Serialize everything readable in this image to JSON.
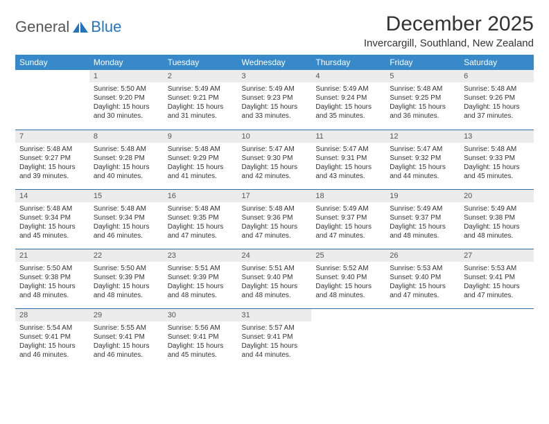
{
  "logo": {
    "text_general": "General",
    "text_blue": "Blue"
  },
  "title": "December 2025",
  "subtitle": "Invercargill, Southland, New Zealand",
  "colors": {
    "header_bg": "#3789ca",
    "header_text": "#ffffff",
    "daynum_bg": "#ececec",
    "daynum_text": "#555555",
    "border": "#2b6faa",
    "body_text": "#333333",
    "logo_general": "#555555",
    "logo_blue": "#2374bd",
    "background": "#ffffff"
  },
  "typography": {
    "title_fontsize": 30,
    "subtitle_fontsize": 15,
    "header_fontsize": 12,
    "daynum_fontsize": 11,
    "cell_fontsize": 10,
    "logo_fontsize": 22
  },
  "weekdays": [
    "Sunday",
    "Monday",
    "Tuesday",
    "Wednesday",
    "Thursday",
    "Friday",
    "Saturday"
  ],
  "weeks": [
    [
      null,
      {
        "day": "1",
        "sunrise": "5:50 AM",
        "sunset": "9:20 PM",
        "daylight": "15 hours and 30 minutes."
      },
      {
        "day": "2",
        "sunrise": "5:49 AM",
        "sunset": "9:21 PM",
        "daylight": "15 hours and 31 minutes."
      },
      {
        "day": "3",
        "sunrise": "5:49 AM",
        "sunset": "9:23 PM",
        "daylight": "15 hours and 33 minutes."
      },
      {
        "day": "4",
        "sunrise": "5:49 AM",
        "sunset": "9:24 PM",
        "daylight": "15 hours and 35 minutes."
      },
      {
        "day": "5",
        "sunrise": "5:48 AM",
        "sunset": "9:25 PM",
        "daylight": "15 hours and 36 minutes."
      },
      {
        "day": "6",
        "sunrise": "5:48 AM",
        "sunset": "9:26 PM",
        "daylight": "15 hours and 37 minutes."
      }
    ],
    [
      {
        "day": "7",
        "sunrise": "5:48 AM",
        "sunset": "9:27 PM",
        "daylight": "15 hours and 39 minutes."
      },
      {
        "day": "8",
        "sunrise": "5:48 AM",
        "sunset": "9:28 PM",
        "daylight": "15 hours and 40 minutes."
      },
      {
        "day": "9",
        "sunrise": "5:48 AM",
        "sunset": "9:29 PM",
        "daylight": "15 hours and 41 minutes."
      },
      {
        "day": "10",
        "sunrise": "5:47 AM",
        "sunset": "9:30 PM",
        "daylight": "15 hours and 42 minutes."
      },
      {
        "day": "11",
        "sunrise": "5:47 AM",
        "sunset": "9:31 PM",
        "daylight": "15 hours and 43 minutes."
      },
      {
        "day": "12",
        "sunrise": "5:47 AM",
        "sunset": "9:32 PM",
        "daylight": "15 hours and 44 minutes."
      },
      {
        "day": "13",
        "sunrise": "5:48 AM",
        "sunset": "9:33 PM",
        "daylight": "15 hours and 45 minutes."
      }
    ],
    [
      {
        "day": "14",
        "sunrise": "5:48 AM",
        "sunset": "9:34 PM",
        "daylight": "15 hours and 45 minutes."
      },
      {
        "day": "15",
        "sunrise": "5:48 AM",
        "sunset": "9:34 PM",
        "daylight": "15 hours and 46 minutes."
      },
      {
        "day": "16",
        "sunrise": "5:48 AM",
        "sunset": "9:35 PM",
        "daylight": "15 hours and 47 minutes."
      },
      {
        "day": "17",
        "sunrise": "5:48 AM",
        "sunset": "9:36 PM",
        "daylight": "15 hours and 47 minutes."
      },
      {
        "day": "18",
        "sunrise": "5:49 AM",
        "sunset": "9:37 PM",
        "daylight": "15 hours and 47 minutes."
      },
      {
        "day": "19",
        "sunrise": "5:49 AM",
        "sunset": "9:37 PM",
        "daylight": "15 hours and 48 minutes."
      },
      {
        "day": "20",
        "sunrise": "5:49 AM",
        "sunset": "9:38 PM",
        "daylight": "15 hours and 48 minutes."
      }
    ],
    [
      {
        "day": "21",
        "sunrise": "5:50 AM",
        "sunset": "9:38 PM",
        "daylight": "15 hours and 48 minutes."
      },
      {
        "day": "22",
        "sunrise": "5:50 AM",
        "sunset": "9:39 PM",
        "daylight": "15 hours and 48 minutes."
      },
      {
        "day": "23",
        "sunrise": "5:51 AM",
        "sunset": "9:39 PM",
        "daylight": "15 hours and 48 minutes."
      },
      {
        "day": "24",
        "sunrise": "5:51 AM",
        "sunset": "9:40 PM",
        "daylight": "15 hours and 48 minutes."
      },
      {
        "day": "25",
        "sunrise": "5:52 AM",
        "sunset": "9:40 PM",
        "daylight": "15 hours and 48 minutes."
      },
      {
        "day": "26",
        "sunrise": "5:53 AM",
        "sunset": "9:40 PM",
        "daylight": "15 hours and 47 minutes."
      },
      {
        "day": "27",
        "sunrise": "5:53 AM",
        "sunset": "9:41 PM",
        "daylight": "15 hours and 47 minutes."
      }
    ],
    [
      {
        "day": "28",
        "sunrise": "5:54 AM",
        "sunset": "9:41 PM",
        "daylight": "15 hours and 46 minutes."
      },
      {
        "day": "29",
        "sunrise": "5:55 AM",
        "sunset": "9:41 PM",
        "daylight": "15 hours and 46 minutes."
      },
      {
        "day": "30",
        "sunrise": "5:56 AM",
        "sunset": "9:41 PM",
        "daylight": "15 hours and 45 minutes."
      },
      {
        "day": "31",
        "sunrise": "5:57 AM",
        "sunset": "9:41 PM",
        "daylight": "15 hours and 44 minutes."
      },
      null,
      null,
      null
    ]
  ],
  "labels": {
    "sunrise": "Sunrise:",
    "sunset": "Sunset:",
    "daylight": "Daylight:"
  }
}
